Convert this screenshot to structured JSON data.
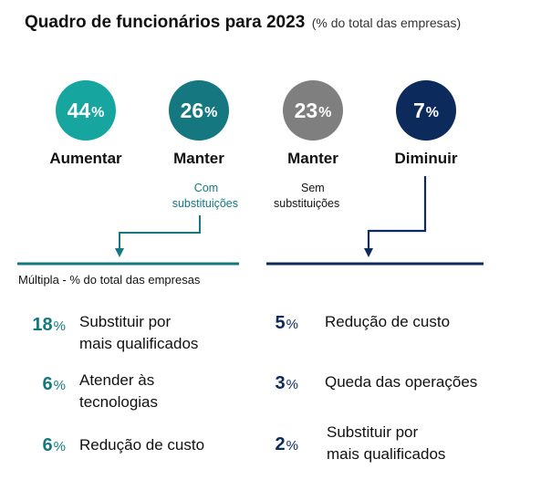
{
  "chart_data": {
    "type": "table",
    "title": "Quadro de funcionários para 2023",
    "subtitle": "(% do total das empresas)",
    "categories": [
      {
        "label": "Aumentar",
        "value": 44,
        "value_text": "44",
        "color": "#17a5a0",
        "note": ""
      },
      {
        "label": "Manter",
        "value": 26,
        "value_text": "26",
        "color": "#15777f",
        "note": "Com substituições"
      },
      {
        "label": "Manter",
        "value": 23,
        "value_text": "23",
        "color": "#7f7f7f",
        "note": "Sem substituições"
      },
      {
        "label": "Diminuir",
        "value": 7,
        "value_text": "7",
        "color": "#0d2a5c",
        "note": ""
      }
    ],
    "percent_symbol": "%",
    "breakdown_title": "Múltipla - % do total das empresas",
    "breakdown_left": [
      {
        "value": 18,
        "value_text": "18",
        "label_lines": [
          "Substituir por",
          "mais qualificados"
        ]
      },
      {
        "value": 6,
        "value_text": "6",
        "label_lines": [
          "Atender às",
          "tecnologias"
        ]
      },
      {
        "value": 6,
        "value_text": "6",
        "label_lines": [
          "Redução de custo"
        ]
      }
    ],
    "breakdown_right": [
      {
        "value": 5,
        "value_text": "5",
        "label_lines": [
          "Redução de custo"
        ]
      },
      {
        "value": 3,
        "value_text": "3",
        "label_lines": [
          "Queda das operações"
        ]
      },
      {
        "value": 2,
        "value_text": "2",
        "label_lines": [
          "Substituir por",
          "mais qualificados"
        ]
      }
    ],
    "colors": {
      "teal_accent": "#15777f",
      "navy_accent": "#0d2a5c"
    }
  }
}
